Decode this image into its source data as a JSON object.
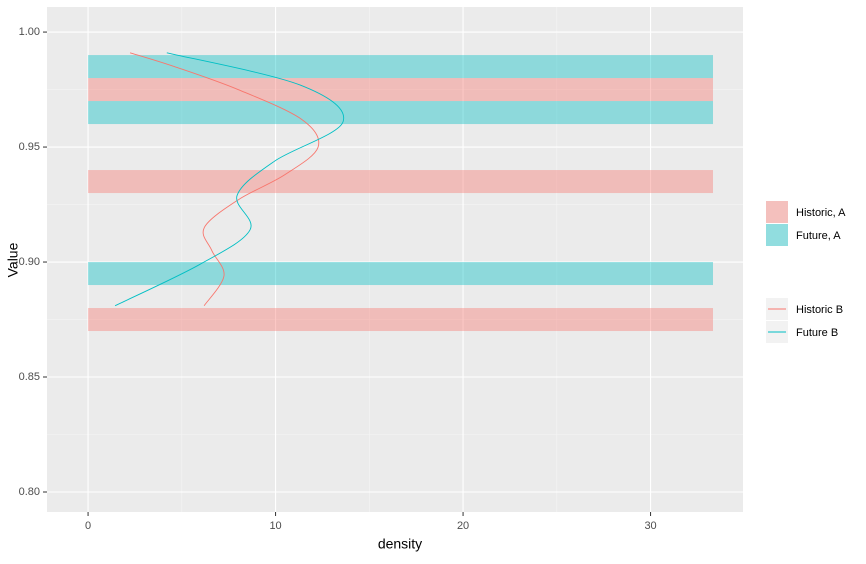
{
  "chart_data": {
    "type": "bar-and-density",
    "x_label": "density",
    "y_label": "Value",
    "xlim": [
      -2.19,
      34.93
    ],
    "ylim": [
      0.7913,
      1.0109
    ],
    "xticks": [
      0,
      10,
      20,
      30
    ],
    "yticks": [
      {
        "value": 0.8,
        "label": "0.80"
      },
      {
        "value": 0.85,
        "label": "0.85"
      },
      {
        "value": 0.9,
        "label": "0.90"
      },
      {
        "value": 0.95,
        "label": "0.95"
      },
      {
        "value": 1.0,
        "label": "1.00"
      }
    ],
    "grid": true,
    "bar_series": [
      {
        "name": "Historic, A",
        "color": "#F8766D",
        "ranges": [
          [
            0.87,
            0.88
          ],
          [
            0.93,
            0.94
          ],
          [
            0.97,
            0.98
          ]
        ],
        "values": [
          33.33,
          33.33,
          33.33
        ]
      },
      {
        "name": "Future, A",
        "color": "#00BFC4",
        "ranges": [
          [
            0.89,
            0.9
          ],
          [
            0.96,
            0.97
          ],
          [
            0.98,
            0.99
          ]
        ],
        "values": [
          33.33,
          33.33,
          33.33
        ]
      }
    ],
    "line_series": [
      {
        "name": "Historic B",
        "color": "#F8766D",
        "x": [
          6.19,
          7.25,
          6.6,
          6.2,
          8.0,
          10.5,
          12.27,
          11.4,
          8.0,
          4.6,
          2.24
        ],
        "y": [
          0.881,
          0.894,
          0.905,
          0.915,
          0.927,
          0.938,
          0.95,
          0.962,
          0.975,
          0.985,
          0.991
        ]
      },
      {
        "name": "Future B",
        "color": "#00BFC4",
        "x": [
          1.44,
          5.97,
          8.64,
          7.95,
          9.97,
          13.6,
          11.3,
          4.2
        ],
        "y": [
          0.881,
          0.899,
          0.914,
          0.929,
          0.944,
          0.961,
          0.977,
          0.991
        ]
      }
    ]
  }
}
